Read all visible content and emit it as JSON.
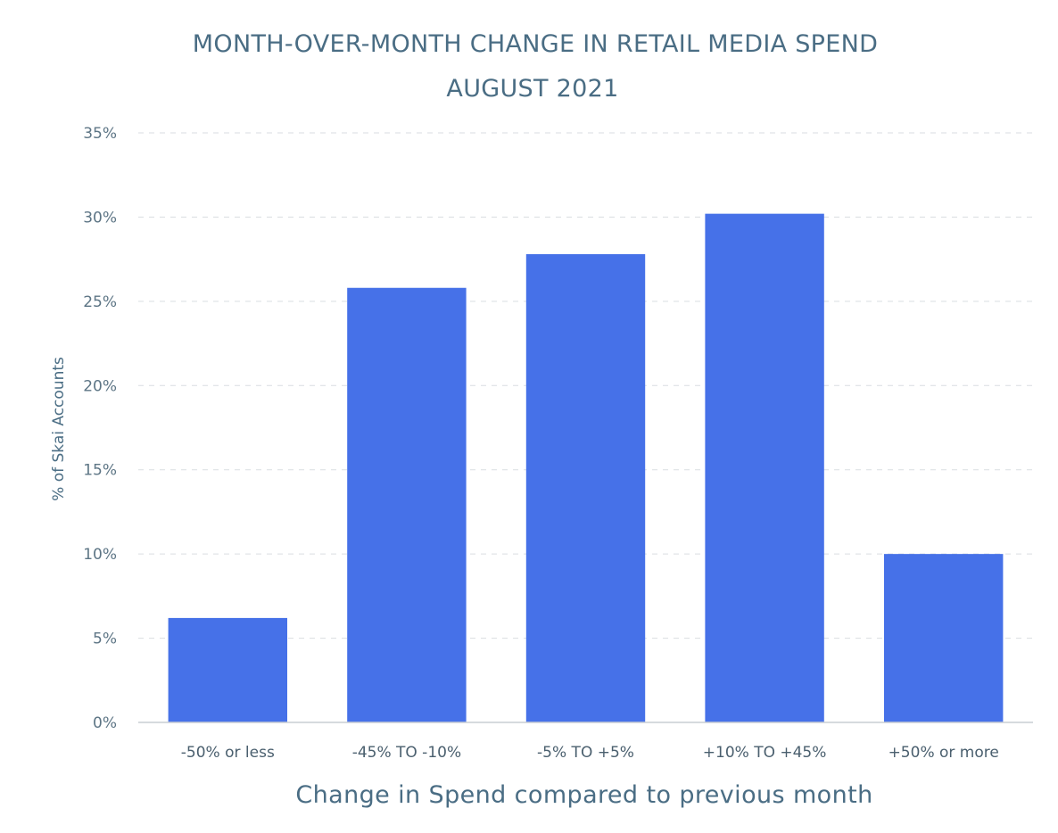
{
  "chart_data": {
    "type": "bar",
    "title": "MONTH-OVER-MONTH CHANGE IN RETAIL MEDIA SPEND",
    "subtitle": "AUGUST 2021",
    "xlabel": "Change in Spend compared to previous month",
    "ylabel": "% of Skai Accounts",
    "categories": [
      "-50% or less",
      "-45% TO -10%",
      "-5% TO +5%",
      "+10% TO +45%",
      "+50% or more"
    ],
    "values": [
      6.2,
      25.8,
      27.8,
      30.2,
      10.0
    ],
    "ylim": [
      0,
      35
    ],
    "yticks": [
      0,
      5,
      10,
      15,
      20,
      25,
      30,
      35
    ],
    "ytick_labels": [
      "0%",
      "5%",
      "10%",
      "15%",
      "20%",
      "25%",
      "30%",
      "35%"
    ],
    "grid": true,
    "legend": "none",
    "bar_color": "#4671e8"
  }
}
